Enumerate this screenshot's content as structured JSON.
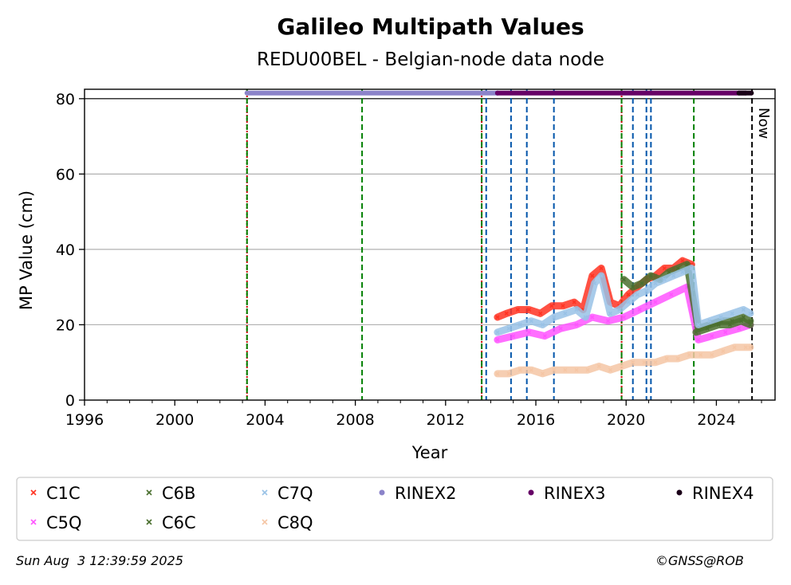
{
  "chart_data": {
    "type": "scatter",
    "title": "Galileo Multipath Values",
    "subtitle": "REDU00BEL - Belgian-node data node",
    "xlabel": "Year",
    "ylabel": "MP Value (cm)",
    "xlim": [
      1996,
      2026.6
    ],
    "ylim": [
      0,
      82.5
    ],
    "xticks": [
      1996,
      2000,
      2004,
      2008,
      2012,
      2016,
      2020,
      2024
    ],
    "yticks": [
      0,
      20,
      40,
      60,
      80
    ],
    "grid": "horizontal",
    "now_label": "Now",
    "series": [
      {
        "name": "C1C",
        "color": "#ff3322",
        "marker": "x",
        "x": [
          2014.3,
          2014.7,
          2015.2,
          2015.7,
          2016.2,
          2016.7,
          2017.2,
          2017.7,
          2018.1,
          2018.5,
          2018.9,
          2019.3,
          2019.7,
          2020.1,
          2020.5,
          2020.9,
          2021.3,
          2021.7,
          2022.1,
          2022.5,
          2022.9
        ],
        "y": [
          22,
          23,
          24,
          24,
          23,
          25,
          25,
          26,
          24,
          33,
          35,
          26,
          25,
          28,
          30,
          32,
          33,
          35,
          35,
          37,
          36
        ]
      },
      {
        "name": "C5Q",
        "color": "#ff55ff",
        "marker": "x",
        "x": [
          2014.3,
          2015.0,
          2015.7,
          2016.4,
          2017.1,
          2017.8,
          2018.5,
          2019.2,
          2019.9,
          2020.6,
          2021.3,
          2022.0,
          2022.7,
          2023.2,
          2023.8,
          2024.4,
          2025.0,
          2025.5
        ],
        "y": [
          16,
          17,
          18,
          17,
          19,
          20,
          22,
          21,
          22,
          24,
          26,
          28,
          30,
          16,
          17,
          18,
          19,
          20
        ]
      },
      {
        "name": "C6B",
        "color": "#4a6f2e",
        "marker": "x",
        "x": [
          2019.9,
          2020.3,
          2020.7,
          2021.1,
          2021.5,
          2021.9,
          2022.3,
          2022.7,
          2023.2,
          2023.7,
          2024.2,
          2024.7,
          2025.2,
          2025.5
        ],
        "y": [
          32,
          30,
          31,
          33,
          32,
          34,
          35,
          36,
          19,
          20,
          21,
          21,
          22,
          21
        ]
      },
      {
        "name": "C6C",
        "color": "#4a6f2e",
        "marker": "x",
        "x": [
          2023.1,
          2023.6,
          2024.1,
          2024.6,
          2025.1,
          2025.5
        ],
        "y": [
          18,
          19,
          20,
          20,
          21,
          20
        ]
      },
      {
        "name": "C7Q",
        "color": "#99c2e6",
        "marker": "x",
        "x": [
          2014.3,
          2014.8,
          2015.3,
          2015.8,
          2016.3,
          2016.8,
          2017.3,
          2017.8,
          2018.2,
          2018.6,
          2018.9,
          2019.3,
          2019.7,
          2020.1,
          2020.5,
          2020.9,
          2021.3,
          2021.7,
          2022.1,
          2022.5,
          2022.9,
          2023.2,
          2023.7,
          2024.2,
          2024.7,
          2025.2,
          2025.5
        ],
        "y": [
          18,
          19,
          20,
          21,
          20,
          22,
          23,
          24,
          22,
          31,
          33,
          23,
          24,
          26,
          28,
          29,
          31,
          32,
          33,
          34,
          35,
          20,
          21,
          22,
          23,
          24,
          23
        ]
      },
      {
        "name": "C8Q",
        "color": "#f5c6a5",
        "marker": "x",
        "x": [
          2014.3,
          2014.8,
          2015.3,
          2015.8,
          2016.3,
          2016.8,
          2017.3,
          2017.8,
          2018.3,
          2018.8,
          2019.3,
          2019.8,
          2020.3,
          2020.8,
          2021.3,
          2021.8,
          2022.3,
          2022.8,
          2023.3,
          2023.8,
          2024.3,
          2024.8,
          2025.3,
          2025.5
        ],
        "y": [
          7,
          7,
          8,
          8,
          7,
          8,
          8,
          8,
          8,
          9,
          8,
          9,
          10,
          10,
          10,
          11,
          11,
          12,
          12,
          12,
          13,
          14,
          14,
          14
        ]
      },
      {
        "name": "RINEX2",
        "color": "#8b83c9",
        "marker": "o",
        "x": [
          2003.2,
          2014.3
        ],
        "y": [
          81.5,
          81.5
        ]
      },
      {
        "name": "RINEX3",
        "color": "#660066",
        "marker": "o",
        "x": [
          2014.3,
          2025.3
        ],
        "y": [
          81.5,
          81.5
        ]
      },
      {
        "name": "RINEX4",
        "color": "#1a0018",
        "marker": "o",
        "x": [
          2025.0,
          2025.55
        ],
        "y": [
          81.5,
          81.5
        ]
      }
    ],
    "vlines": [
      {
        "x": 2003.2,
        "color": "#cc0000",
        "style": "dotted"
      },
      {
        "x": 2003.2,
        "color": "#008000",
        "style": "dashed"
      },
      {
        "x": 2008.3,
        "color": "#008000",
        "style": "dashed"
      },
      {
        "x": 2013.6,
        "color": "#cc0000",
        "style": "dotted"
      },
      {
        "x": 2013.6,
        "color": "#008000",
        "style": "dashed"
      },
      {
        "x": 2013.8,
        "color": "#0055aa",
        "style": "dashed"
      },
      {
        "x": 2014.9,
        "color": "#0055aa",
        "style": "dashed"
      },
      {
        "x": 2015.6,
        "color": "#0055aa",
        "style": "dashed"
      },
      {
        "x": 2016.8,
        "color": "#0055aa",
        "style": "dashed"
      },
      {
        "x": 2019.8,
        "color": "#cc0000",
        "style": "dotted"
      },
      {
        "x": 2019.8,
        "color": "#008000",
        "style": "dashed"
      },
      {
        "x": 2020.3,
        "color": "#0055aa",
        "style": "dashed"
      },
      {
        "x": 2020.9,
        "color": "#0055aa",
        "style": "dashed"
      },
      {
        "x": 2021.1,
        "color": "#0055aa",
        "style": "dashed"
      },
      {
        "x": 2023.0,
        "color": "#008000",
        "style": "dashed"
      },
      {
        "x": 2025.58,
        "color": "#000000",
        "style": "dashed"
      }
    ],
    "legend_position": "bottom",
    "legend": [
      {
        "label": "C1C",
        "color": "#ff3322",
        "marker": "x"
      },
      {
        "label": "C6B",
        "color": "#4a6f2e",
        "marker": "x"
      },
      {
        "label": "C7Q",
        "color": "#99c2e6",
        "marker": "x"
      },
      {
        "label": "RINEX2",
        "color": "#8b83c9",
        "marker": "o"
      },
      {
        "label": "RINEX3",
        "color": "#660066",
        "marker": "o"
      },
      {
        "label": "RINEX4",
        "color": "#1a0018",
        "marker": "o"
      },
      {
        "label": "C5Q",
        "color": "#ff55ff",
        "marker": "x"
      },
      {
        "label": "C6C",
        "color": "#4a6f2e",
        "marker": "x"
      },
      {
        "label": "C8Q",
        "color": "#f5c6a5",
        "marker": "x"
      }
    ]
  },
  "footer": {
    "timestamp": "Sun Aug  3 12:39:59 2025",
    "credit": "©GNSS@ROB"
  }
}
